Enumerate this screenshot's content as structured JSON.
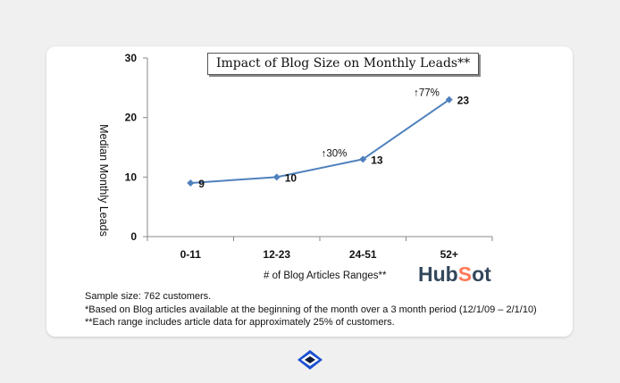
{
  "chart_data": {
    "type": "line",
    "title": "Impact of Blog Size on Monthly Leads**",
    "xlabel": "# of Blog Articles Ranges**",
    "ylabel": "Median Monthly Leads",
    "categories": [
      "0-11",
      "12-23",
      "24-51",
      "52+"
    ],
    "series": [
      {
        "values": [
          9,
          10,
          13,
          23
        ],
        "data_labels": [
          "9",
          "10",
          "13",
          "23"
        ],
        "color": "#4f81bd"
      }
    ],
    "ylim": [
      0,
      30
    ],
    "yticks": [
      0,
      10,
      20,
      30
    ],
    "grid": false,
    "annotations": [
      {
        "text": "30%",
        "arrow": "↑",
        "between": [
          "12-23",
          "24-51"
        ]
      },
      {
        "text": "77%",
        "arrow": "↑",
        "between": [
          "24-51",
          "52+"
        ]
      }
    ]
  },
  "branding": {
    "logo_text_before": "Hub",
    "logo_text_sprocket": "S",
    "logo_text_after": "ot",
    "logo_color": "#33475b",
    "sprocket_color": "#ff7a59"
  },
  "notes": [
    "Sample size: 762 customers.",
    "*Based on Blog articles available at the beginning of the month over a 3 month period  (12/1/09 – 2/1/10)",
    "**Each range includes article data for approximately 25% of customers."
  ],
  "footer": {
    "icon": "eye-diamond-icon",
    "icon_color": "#1a4fd0"
  }
}
